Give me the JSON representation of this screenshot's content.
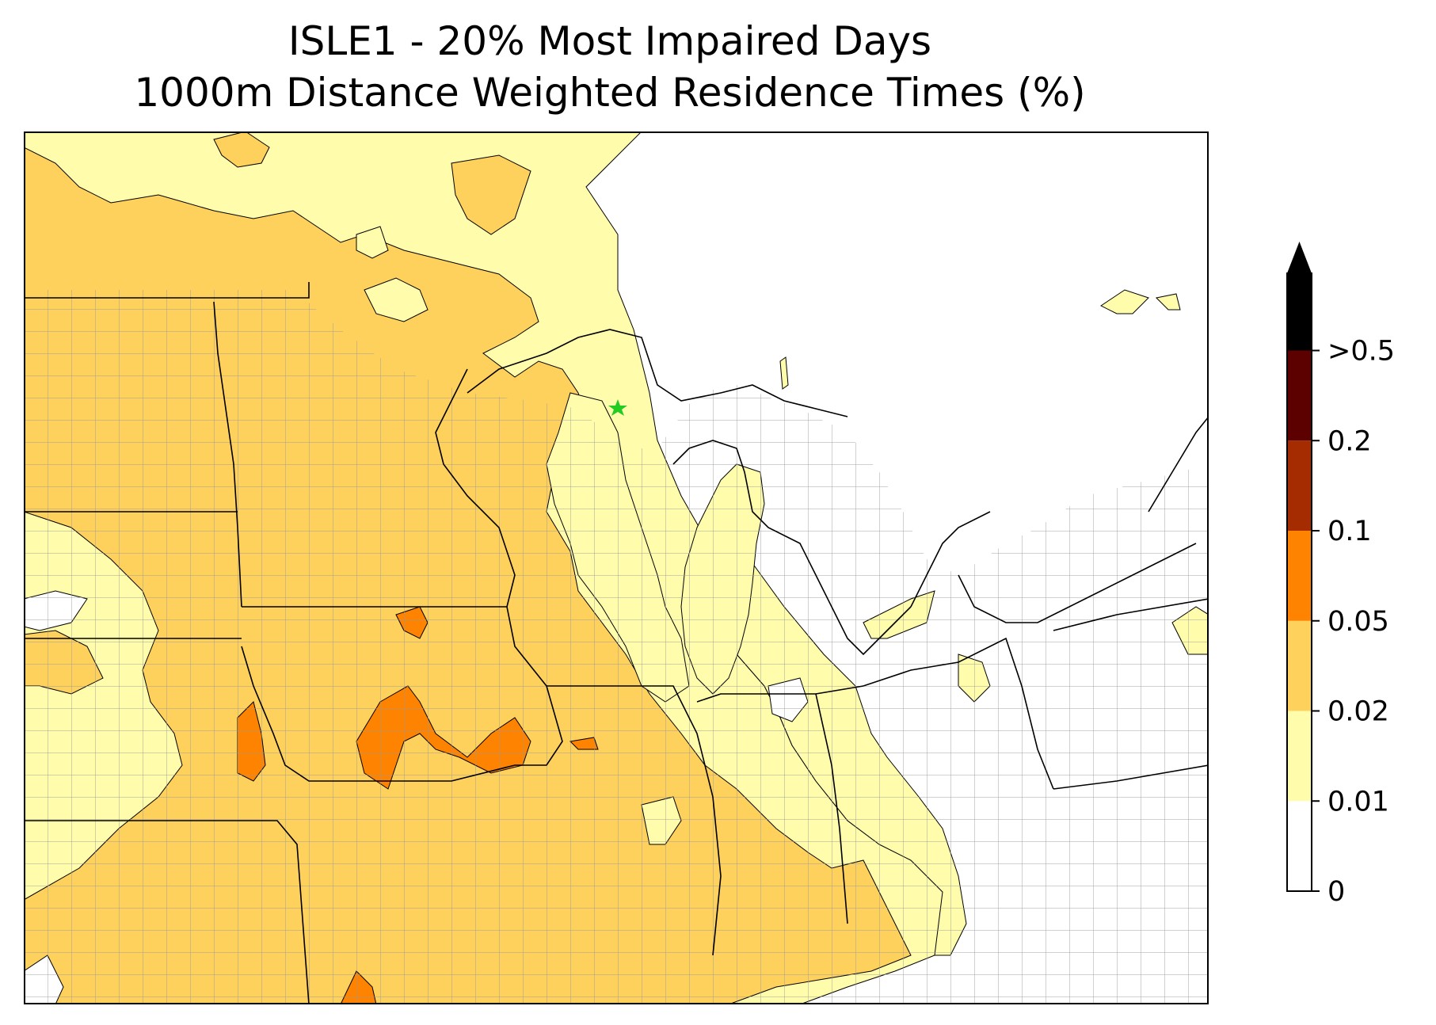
{
  "title": {
    "line1": "ISLE1 - 20% Most Impaired Days",
    "line2": "1000m Distance Weighted Residence Times (%)"
  },
  "colorbar": {
    "levels": [
      {
        "label": "0",
        "color": "#ffffff"
      },
      {
        "label": "0.01",
        "color": "#fffcab"
      },
      {
        "label": "0.02",
        "color": "#fed05c"
      },
      {
        "label": "0.05",
        "color": "#fe8300"
      },
      {
        "label": "0.1",
        "color": "#a52b00"
      },
      {
        "label": "0.2",
        "color": "#5c0000"
      },
      {
        "label": ">0.5",
        "color": "#000000"
      }
    ],
    "overflow_color": "#000000"
  },
  "map": {
    "receptor_marker_color": "#22cc22",
    "county_line_color": "#999999",
    "state_line_color": "#000000"
  }
}
